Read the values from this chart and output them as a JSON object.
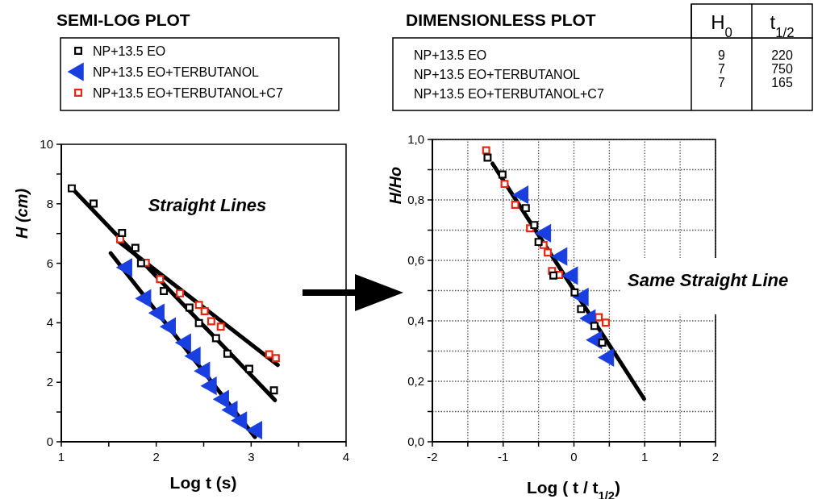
{
  "chart_data": [
    {
      "type": "scatter",
      "title": "SEMI-LOG PLOT",
      "xlabel": "Log t (s)",
      "ylabel": "H (cm)",
      "xlim": [
        1,
        4
      ],
      "ylim": [
        0,
        10
      ],
      "xticks": [
        1,
        {
          "value": 1.5,
          "label": null
        },
        2,
        {
          "value": 2.5,
          "label": null
        },
        3,
        {
          "value": 3.5,
          "label": null
        },
        4
      ],
      "yticks": [
        0,
        {
          "value": 1,
          "label": null
        },
        2,
        {
          "value": 3,
          "label": null
        },
        4,
        {
          "value": 5,
          "label": null
        },
        6,
        {
          "value": 7,
          "label": null
        },
        8,
        {
          "value": 9,
          "label": null
        },
        10
      ],
      "legend": "top",
      "annotations": [
        "Straight Lines"
      ],
      "series": [
        {
          "name": "NP+13.5 EO",
          "type": "scatter",
          "marker": "square",
          "color": "#000000",
          "x": [
            1.11,
            1.34,
            1.64,
            1.78,
            1.84,
            2.08,
            2.35,
            2.45,
            2.63,
            2.75,
            2.98,
            3.24
          ],
          "values": [
            8.52,
            8.01,
            7.02,
            6.52,
            6.0,
            5.07,
            4.51,
            3.99,
            3.48,
            2.96,
            2.45,
            1.73
          ]
        },
        {
          "name": "NP+13.5 EO+TERBUTANOL",
          "type": "scatter",
          "marker": "triangle",
          "color": "#1a3fe0",
          "x": [
            1.69,
            1.89,
            2.03,
            2.15,
            2.31,
            2.41,
            2.51,
            2.58,
            2.71,
            2.8,
            2.9,
            3.06
          ],
          "values": [
            5.86,
            4.82,
            4.33,
            3.87,
            3.33,
            2.88,
            2.38,
            1.88,
            1.43,
            1.07,
            0.71,
            0.39
          ]
        },
        {
          "name": "NP+13.5 EO+TERBUTANOL+C7",
          "type": "scatter",
          "marker": "square",
          "color": "#e8260f",
          "x": [
            1.62,
            1.89,
            2.04,
            2.25,
            2.45,
            2.51,
            2.58,
            2.68,
            3.19,
            3.26
          ],
          "values": [
            6.81,
            6.02,
            5.47,
            4.99,
            4.6,
            4.39,
            4.05,
            3.87,
            2.94,
            2.81
          ]
        },
        {
          "type": "line",
          "color": "#000000",
          "x": [
            1.11,
            3.25
          ],
          "values": [
            8.53,
            1.4
          ]
        },
        {
          "type": "line",
          "color": "#000000",
          "x": [
            1.6,
            3.28
          ],
          "values": [
            6.74,
            2.58
          ]
        },
        {
          "type": "line",
          "color": "#000000",
          "x": [
            1.52,
            3.04
          ],
          "values": [
            6.34,
            0.16
          ]
        }
      ]
    },
    {
      "type": "scatter",
      "title": "DIMENSIONLESS PLOT",
      "xlabel": "Log ( t / t$_{1/2}$)",
      "ylabel": "H/Ho",
      "xlim": [
        -2,
        2
      ],
      "ylim": [
        0,
        1
      ],
      "grid": true,
      "xticks": [
        -2,
        {
          "value": -1.5,
          "label": null
        },
        -1,
        {
          "value": -0.5,
          "label": null
        },
        0,
        {
          "value": 0.5,
          "label": null
        },
        1,
        {
          "value": 1.5,
          "label": null
        },
        2
      ],
      "yticks": [
        {
          "value": 0,
          "label": "0,0"
        },
        {
          "value": 0.1,
          "label": null
        },
        {
          "value": 0.2,
          "label": "0,2"
        },
        {
          "value": 0.3,
          "label": null
        },
        {
          "value": 0.4,
          "label": "0,4"
        },
        {
          "value": 0.5,
          "label": null
        },
        {
          "value": 0.6,
          "label": "0,6"
        },
        {
          "value": 0.7,
          "label": null
        },
        {
          "value": 0.8,
          "label": "0,8"
        },
        {
          "value": 0.9,
          "label": null
        },
        {
          "value": 1,
          "label": "1,0"
        }
      ],
      "annotations": [
        "Same Straight Line",
        "H$_{0}$",
        "t$_{1/2}$",
        "NP+13.5 EO",
        "9",
        "220",
        "NP+13.5 EO+TERBUTANOL",
        "7",
        "750",
        "NP+13.5 EO+TERBUTANOL+C7",
        "7",
        "165"
      ],
      "series": [
        {
          "type": "scatter",
          "marker": "square",
          "color": "#000000",
          "x": [
            -1.22,
            -1.01,
            -0.68,
            -0.56,
            -0.5,
            -0.29,
            0.01,
            0.1,
            0.29,
            0.4
          ],
          "values": [
            0.94,
            0.884,
            0.773,
            0.717,
            0.661,
            0.55,
            0.494,
            0.439,
            0.383,
            0.328
          ]
        },
        {
          "type": "scatter",
          "marker": "triangle",
          "color": "#1a3fe0",
          "x": [
            -0.72,
            -0.4,
            -0.17,
            -0.02,
            0.13,
            0.23,
            0.32,
            0.49
          ],
          "values": [
            0.817,
            0.69,
            0.613,
            0.55,
            0.479,
            0.408,
            0.337,
            0.279
          ]
        },
        {
          "type": "scatter",
          "marker": "square",
          "color": "#e8260f",
          "x": [
            -1.24,
            -0.98,
            -0.83,
            -0.62,
            -0.43,
            -0.37,
            -0.31,
            -0.21,
            0.35,
            0.45
          ],
          "values": [
            0.964,
            0.853,
            0.784,
            0.706,
            0.651,
            0.626,
            0.565,
            0.552,
            0.412,
            0.394
          ]
        },
        {
          "type": "line",
          "color": "#000000",
          "x": [
            -1.15,
            0.99
          ],
          "values": [
            0.92,
            0.142
          ]
        }
      ]
    }
  ]
}
